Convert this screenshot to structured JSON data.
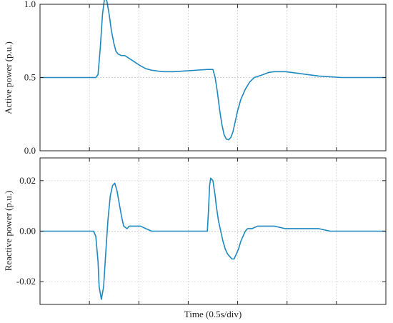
{
  "chart_data": [
    {
      "type": "line",
      "title": "",
      "xlabel": "",
      "ylabel": "Active power (p.u.)",
      "xlim": [
        0,
        3.1
      ],
      "ylim": [
        0,
        1.0
      ],
      "y_ticks": [
        0.0,
        0.5,
        1.0
      ],
      "y_tick_labels": [
        "0.0",
        "0.5",
        "1.0"
      ],
      "x_tick_count": 7,
      "grid": true,
      "line_color": "#1f88c0",
      "series": [
        {
          "x": [
            0,
            0.3,
            0.5,
            0.52,
            0.54,
            0.56,
            0.58,
            0.6,
            0.62,
            0.64,
            0.66,
            0.68,
            0.7,
            0.73,
            0.76,
            0.8,
            0.84,
            0.9,
            0.95,
            1.0,
            1.1,
            1.2,
            1.3,
            1.4,
            1.5,
            1.55,
            1.57,
            1.59,
            1.61,
            1.63,
            1.65,
            1.67,
            1.69,
            1.71,
            1.73,
            1.75,
            1.77,
            1.8,
            1.84,
            1.88,
            1.92,
            1.96,
            2.0,
            2.05,
            2.1,
            2.2,
            2.3,
            2.4,
            2.5,
            2.6,
            2.7,
            2.8,
            2.9,
            3.0,
            3.1
          ],
          "values": [
            0.5,
            0.5,
            0.5,
            0.52,
            0.7,
            0.93,
            1.05,
            1.02,
            0.93,
            0.82,
            0.74,
            0.68,
            0.66,
            0.65,
            0.65,
            0.63,
            0.61,
            0.58,
            0.56,
            0.55,
            0.54,
            0.54,
            0.545,
            0.55,
            0.555,
            0.555,
            0.5,
            0.4,
            0.28,
            0.18,
            0.11,
            0.08,
            0.075,
            0.09,
            0.13,
            0.2,
            0.27,
            0.35,
            0.42,
            0.47,
            0.5,
            0.51,
            0.52,
            0.535,
            0.54,
            0.54,
            0.53,
            0.52,
            0.51,
            0.505,
            0.5,
            0.5,
            0.5,
            0.5,
            0.5
          ]
        }
      ]
    },
    {
      "type": "line",
      "title": "",
      "xlabel": "Time (0.5s/div)",
      "ylabel": "Reactive power (p.u.)",
      "xlim": [
        0,
        3.1
      ],
      "ylim": [
        -0.029,
        0.029
      ],
      "y_ticks": [
        -0.02,
        0.0,
        0.02
      ],
      "y_tick_labels": [
        "-0.02",
        "0.00",
        "0.02"
      ],
      "x_tick_count": 7,
      "grid": true,
      "line_color": "#1f88c0",
      "series": [
        {
          "x": [
            0,
            0.3,
            0.48,
            0.5,
            0.52,
            0.53,
            0.55,
            0.57,
            0.59,
            0.61,
            0.63,
            0.65,
            0.67,
            0.69,
            0.71,
            0.73,
            0.75,
            0.78,
            0.8,
            0.83,
            0.86,
            0.9,
            0.95,
            1.0,
            1.05,
            1.1,
            1.2,
            1.3,
            1.4,
            1.5,
            1.51,
            1.52,
            1.53,
            1.55,
            1.57,
            1.58,
            1.6,
            1.62,
            1.64,
            1.66,
            1.68,
            1.7,
            1.72,
            1.74,
            1.76,
            1.78,
            1.8,
            1.82,
            1.84,
            1.86,
            1.9,
            1.95,
            2.0,
            2.1,
            2.2,
            2.3,
            2.4,
            2.5,
            2.6,
            2.7,
            2.8,
            2.9,
            3.0,
            3.1
          ],
          "values": [
            0.0,
            0.0,
            0.0,
            -0.002,
            -0.012,
            -0.022,
            -0.027,
            -0.022,
            -0.008,
            0.005,
            0.014,
            0.018,
            0.019,
            0.016,
            0.011,
            0.006,
            0.002,
            0.001,
            0.002,
            0.002,
            0.002,
            0.002,
            0.001,
            0.0,
            0.0,
            0.0,
            0.0,
            0.0,
            0.0,
            0.0,
            0.008,
            0.018,
            0.021,
            0.02,
            0.014,
            0.01,
            0.004,
            0.0,
            -0.004,
            -0.007,
            -0.009,
            -0.01,
            -0.011,
            -0.011,
            -0.009,
            -0.007,
            -0.004,
            -0.002,
            0.0,
            0.001,
            0.001,
            0.002,
            0.002,
            0.002,
            0.001,
            0.001,
            0.001,
            0.001,
            0.0,
            0.0,
            0.0,
            0.0,
            0.0,
            0.0
          ]
        }
      ]
    }
  ]
}
